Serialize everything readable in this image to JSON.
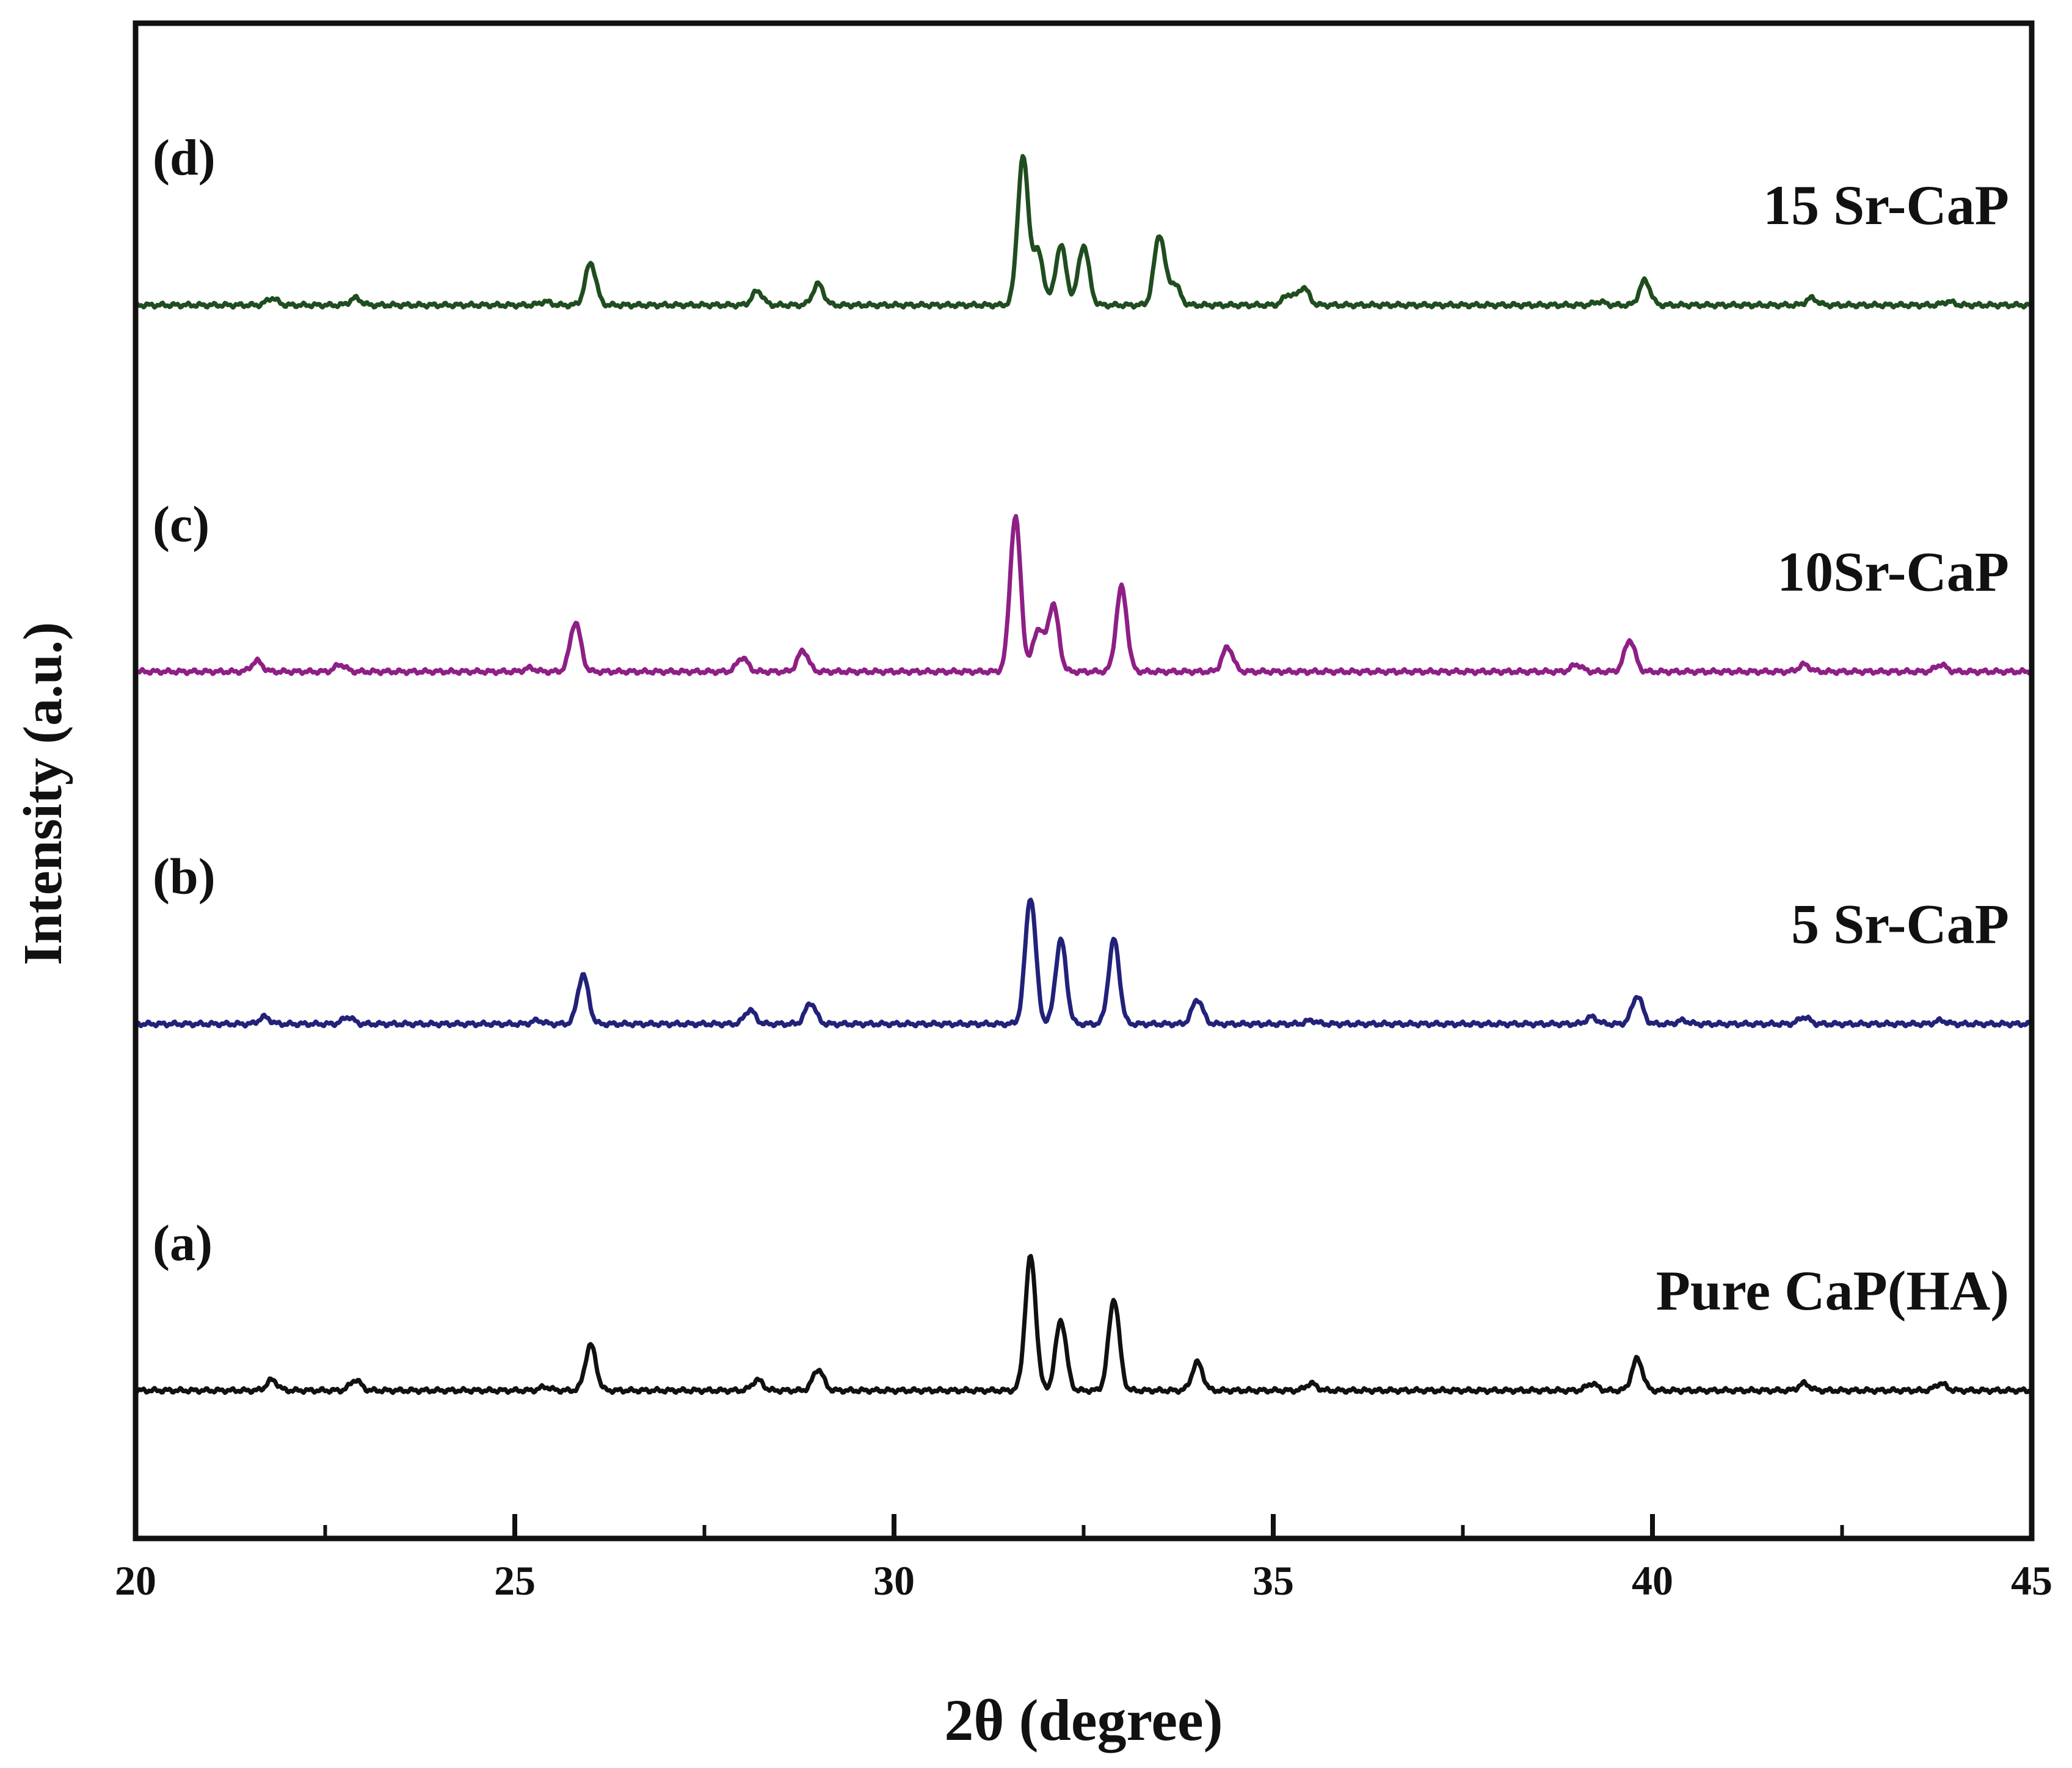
{
  "chart_data": {
    "type": "line",
    "xlabel": "2θ (degree)",
    "ylabel": "Intensity (a.u.)",
    "xlim": [
      20,
      45
    ],
    "ylim": [
      0,
      4.3
    ],
    "x_ticks": [
      20,
      25,
      30,
      35,
      40,
      45
    ],
    "x_tick_labels": [
      "20",
      "25",
      "30",
      "35",
      "40",
      "45"
    ],
    "grid": false,
    "legend": "none",
    "series": [
      {
        "name": "Pure CaP(HA)",
        "panel_label": "(a)",
        "color": "#111111",
        "baseline": 0.42,
        "peaks": [
          [
            21.8,
            0.03
          ],
          [
            22.9,
            0.03
          ],
          [
            25.4,
            0.01
          ],
          [
            26.0,
            0.13
          ],
          [
            28.2,
            0.03
          ],
          [
            29.0,
            0.06
          ],
          [
            31.8,
            0.38
          ],
          [
            32.2,
            0.2
          ],
          [
            32.9,
            0.26
          ],
          [
            34.0,
            0.08
          ],
          [
            35.5,
            0.02
          ],
          [
            39.2,
            0.02
          ],
          [
            39.8,
            0.09
          ],
          [
            42.0,
            0.02
          ],
          [
            43.8,
            0.02
          ]
        ]
      },
      {
        "name": "5 Sr-CaP",
        "panel_label": "(b)",
        "color": "#22227a",
        "baseline": 1.46,
        "peaks": [
          [
            21.7,
            0.02
          ],
          [
            22.8,
            0.02
          ],
          [
            25.3,
            0.01
          ],
          [
            25.9,
            0.14
          ],
          [
            28.1,
            0.04
          ],
          [
            28.9,
            0.06
          ],
          [
            31.8,
            0.36
          ],
          [
            32.2,
            0.24
          ],
          [
            32.9,
            0.24
          ],
          [
            34.0,
            0.07
          ],
          [
            35.5,
            0.01
          ],
          [
            39.2,
            0.02
          ],
          [
            39.8,
            0.08
          ],
          [
            40.4,
            0.01
          ],
          [
            42.0,
            0.02
          ],
          [
            43.8,
            0.01
          ]
        ]
      },
      {
        "name": "10Sr-CaP",
        "panel_label": "(c)",
        "color": "#8e1f86",
        "baseline": 2.46,
        "peaks": [
          [
            21.6,
            0.03
          ],
          [
            22.7,
            0.02
          ],
          [
            25.2,
            0.01
          ],
          [
            25.8,
            0.14
          ],
          [
            28.0,
            0.04
          ],
          [
            28.8,
            0.06
          ],
          [
            31.6,
            0.44
          ],
          [
            31.9,
            0.12
          ],
          [
            32.1,
            0.19
          ],
          [
            33.0,
            0.24
          ],
          [
            34.4,
            0.07
          ],
          [
            39.0,
            0.02
          ],
          [
            39.7,
            0.09
          ],
          [
            42.0,
            0.02
          ],
          [
            43.8,
            0.02
          ]
        ]
      },
      {
        "name": "15 Sr-CaP",
        "panel_label": "(d)",
        "color": "#1f4d1f",
        "baseline": 3.5,
        "peaks": [
          [
            21.8,
            0.02
          ],
          [
            22.9,
            0.02
          ],
          [
            25.4,
            0.01
          ],
          [
            26.0,
            0.12
          ],
          [
            28.2,
            0.04
          ],
          [
            29.0,
            0.06
          ],
          [
            31.7,
            0.42
          ],
          [
            31.9,
            0.15
          ],
          [
            32.2,
            0.17
          ],
          [
            32.5,
            0.17
          ],
          [
            33.5,
            0.2
          ],
          [
            33.7,
            0.06
          ],
          [
            35.2,
            0.03
          ],
          [
            35.4,
            0.05
          ],
          [
            39.3,
            0.01
          ],
          [
            39.9,
            0.07
          ],
          [
            42.1,
            0.02
          ],
          [
            43.9,
            0.01
          ]
        ]
      }
    ]
  }
}
